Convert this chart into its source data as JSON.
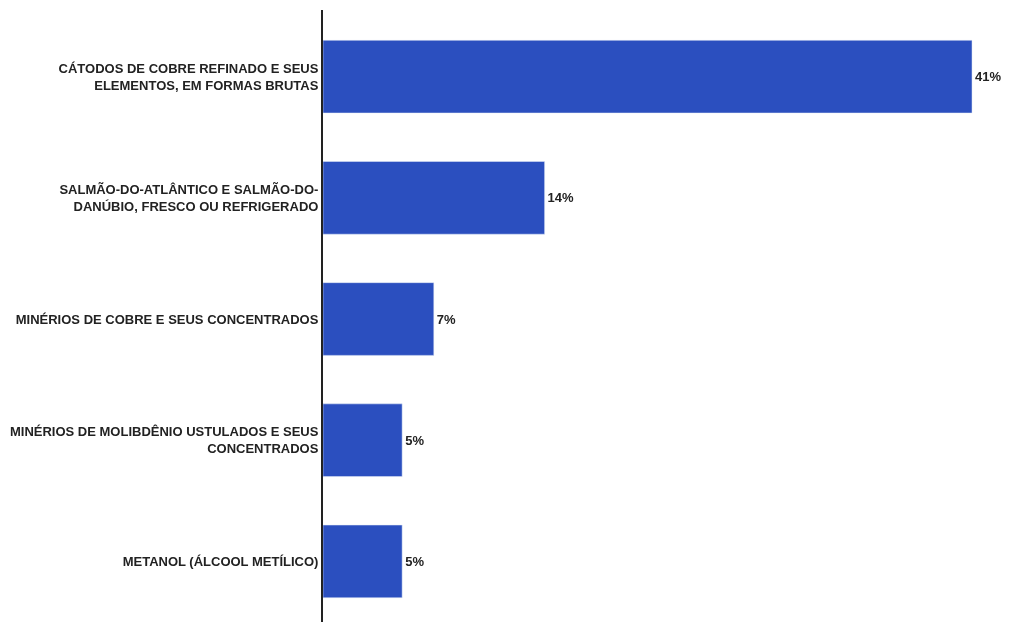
{
  "chart_data": {
    "type": "bar",
    "orientation": "horizontal",
    "categories": [
      "CÁTODOS DE COBRE REFINADO E SEUS\nELEMENTOS, EM FORMAS BRUTAS",
      "SALMÃO-DO-ATLÂNTICO E SALMÃO-DO-\nDANÚBIO, FRESCO OU REFRIGERADO",
      "MINÉRIOS DE COBRE E SEUS CONCENTRADOS",
      "MINÉRIOS DE MOLIBDÊNIO USTULADOS E SEUS\nCONCENTRADOS",
      "METANOL (ÁLCOOL METÍLICO)"
    ],
    "values": [
      41,
      14,
      7,
      5,
      5
    ],
    "value_labels": [
      "41%",
      "14%",
      "7%",
      "5%",
      "5%"
    ],
    "color": "#2b4fbf"
  }
}
